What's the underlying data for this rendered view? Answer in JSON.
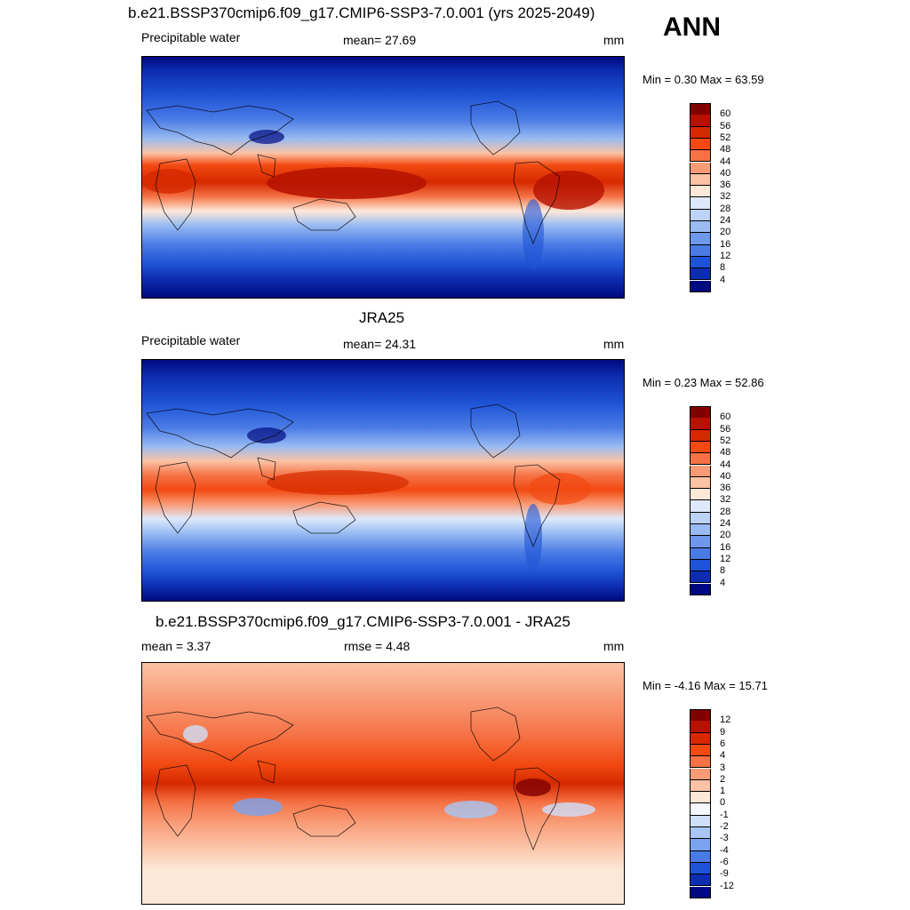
{
  "header": {
    "title": "b.e21.BSSP370cmip6.f09_g17.CMIP6-SSP3-7.0.001 (yrs 2025-2049)",
    "season": "ANN"
  },
  "panels": [
    {
      "id": "model",
      "title": "",
      "left_label": "Precipitable water",
      "center_label": "mean=  27.69",
      "right_label": "mm",
      "minmax": "Min =   0.30 Max =  63.59",
      "colorbar": {
        "ticks": [
          "60",
          "56",
          "52",
          "48",
          "44",
          "40",
          "36",
          "32",
          "28",
          "24",
          "20",
          "16",
          "12",
          "8",
          "4"
        ],
        "colors": [
          "#800000",
          "#b51200",
          "#d62900",
          "#f24a12",
          "#f57245",
          "#f89b76",
          "#fbc2a5",
          "#fde8d8",
          "#dde9fb",
          "#bcd3f7",
          "#99bbf2",
          "#6f98eb",
          "#4a7be5",
          "#1f53d6",
          "#0d2db0",
          "#000a80"
        ]
      }
    },
    {
      "id": "obs",
      "title": "JRA25",
      "left_label": "Precipitable water",
      "center_label": "mean=  24.31",
      "right_label": "mm",
      "minmax": "Min =   0.23 Max =  52.86",
      "colorbar": {
        "ticks": [
          "60",
          "56",
          "52",
          "48",
          "44",
          "40",
          "36",
          "32",
          "28",
          "24",
          "20",
          "16",
          "12",
          "8",
          "4"
        ],
        "colors": [
          "#800000",
          "#b51200",
          "#d62900",
          "#f24a12",
          "#f57245",
          "#f89b76",
          "#fbc2a5",
          "#fde8d8",
          "#dde9fb",
          "#bcd3f7",
          "#99bbf2",
          "#6f98eb",
          "#4a7be5",
          "#1f53d6",
          "#0d2db0",
          "#000a80"
        ]
      }
    },
    {
      "id": "diff",
      "title": "b.e21.BSSP370cmip6.f09_g17.CMIP6-SSP3-7.0.001 - JRA25",
      "left_label": "mean =   3.37",
      "center_label": "rmse =   4.48",
      "right_label": "mm",
      "minmax": "Min =  -4.16 Max =  15.71",
      "colorbar": {
        "ticks": [
          "12",
          "9",
          "6",
          "4",
          "3",
          "2",
          "1",
          "0",
          "-1",
          "-2",
          "-3",
          "-4",
          "-6",
          "-9",
          "-12"
        ],
        "colors": [
          "#800000",
          "#b51200",
          "#d62900",
          "#f24a12",
          "#f57245",
          "#f89b76",
          "#fbc2a5",
          "#fde8d8",
          "#f5f8fe",
          "#cfe0fa",
          "#a8c6f5",
          "#7aa2ee",
          "#4a7be5",
          "#1f53d6",
          "#0d2db0",
          "#000a80"
        ]
      }
    }
  ]
}
